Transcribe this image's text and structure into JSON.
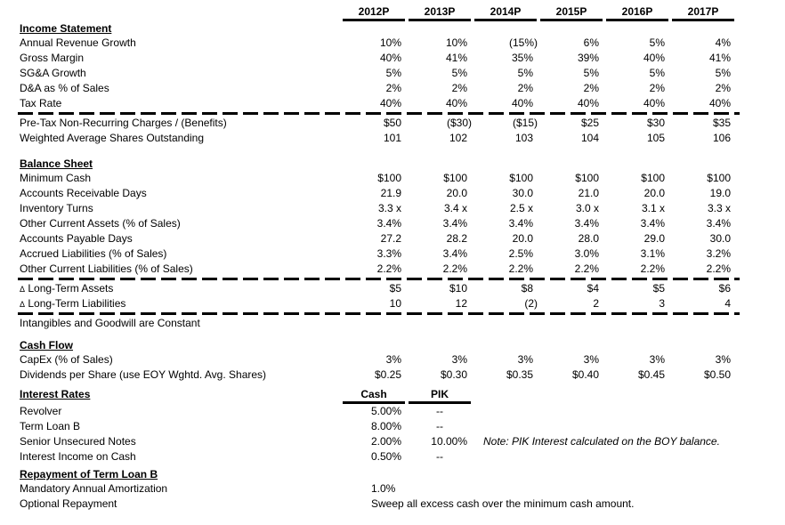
{
  "columns": [
    "2012P",
    "2013P",
    "2014P",
    "2015P",
    "2016P",
    "2017P"
  ],
  "income_statement": {
    "title": "Income Statement",
    "rows": [
      {
        "label": "Annual Revenue Growth",
        "values": [
          "10%",
          "10%",
          "(15%)",
          "6%",
          "5%",
          "4%"
        ]
      },
      {
        "label": "Gross Margin",
        "values": [
          "40%",
          "41%",
          "35%",
          "39%",
          "40%",
          "41%"
        ]
      },
      {
        "label": "SG&A Growth",
        "values": [
          "5%",
          "5%",
          "5%",
          "5%",
          "5%",
          "5%"
        ]
      },
      {
        "label": "D&A as % of Sales",
        "values": [
          "2%",
          "2%",
          "2%",
          "2%",
          "2%",
          "2%"
        ]
      },
      {
        "label": "Tax Rate",
        "values": [
          "40%",
          "40%",
          "40%",
          "40%",
          "40%",
          "40%"
        ]
      }
    ]
  },
  "non_recurring": {
    "rows": [
      {
        "label": "Pre-Tax Non-Recurring Charges / (Benefits)",
        "values": [
          "$50",
          "($30)",
          "($15)",
          "$25",
          "$30",
          "$35"
        ]
      },
      {
        "label": "Weighted Average Shares Outstanding",
        "values": [
          "101",
          "102",
          "103",
          "104",
          "105",
          "106"
        ]
      }
    ]
  },
  "balance_sheet": {
    "title": "Balance Sheet",
    "rows": [
      {
        "label": "Minimum Cash",
        "values": [
          "$100",
          "$100",
          "$100",
          "$100",
          "$100",
          "$100"
        ]
      },
      {
        "label": "Accounts Receivable Days",
        "values": [
          "21.9",
          "20.0",
          "30.0",
          "21.0",
          "20.0",
          "19.0"
        ]
      },
      {
        "label": "Inventory Turns",
        "values": [
          "3.3 x",
          "3.4 x",
          "2.5 x",
          "3.0 x",
          "3.1 x",
          "3.3 x"
        ]
      },
      {
        "label": "Other Current Assets (% of Sales)",
        "values": [
          "3.4%",
          "3.4%",
          "3.4%",
          "3.4%",
          "3.4%",
          "3.4%"
        ]
      },
      {
        "label": "Accounts Payable Days",
        "values": [
          "27.2",
          "28.2",
          "20.0",
          "28.0",
          "29.0",
          "30.0"
        ]
      },
      {
        "label": "Accrued Liabilities (% of Sales)",
        "values": [
          "3.3%",
          "3.4%",
          "2.5%",
          "3.0%",
          "3.1%",
          "3.2%"
        ]
      },
      {
        "label": "Other Current Liabilities (% of Sales)",
        "values": [
          "2.2%",
          "2.2%",
          "2.2%",
          "2.2%",
          "2.2%",
          "2.2%"
        ]
      }
    ]
  },
  "long_term": {
    "rows": [
      {
        "label": "Δ Long-Term Assets",
        "values": [
          "$5",
          "$10",
          "$8",
          "$4",
          "$5",
          "$6"
        ]
      },
      {
        "label": "Δ Long-Term Liabilities",
        "values": [
          "10",
          "12",
          "(2)",
          "2",
          "3",
          "4"
        ]
      }
    ]
  },
  "notes": {
    "intangibles": "Intangibles and Goodwill are Constant"
  },
  "cash_flow": {
    "title": "Cash Flow",
    "rows": [
      {
        "label": "CapEx (% of Sales)",
        "values": [
          "3%",
          "3%",
          "3%",
          "3%",
          "3%",
          "3%"
        ]
      },
      {
        "label": "Dividends per Share (use EOY Wghtd. Avg. Shares)",
        "values": [
          "$0.25",
          "$0.30",
          "$0.35",
          "$0.40",
          "$0.45",
          "$0.50"
        ]
      }
    ]
  },
  "interest_rates": {
    "title": "Interest Rates",
    "columns": [
      "Cash",
      "PIK"
    ],
    "rows": [
      {
        "label": "Revolver",
        "values": [
          "5.00%",
          "--"
        ]
      },
      {
        "label": "Term Loan B",
        "values": [
          "8.00%",
          "--"
        ]
      },
      {
        "label": "Senior Unsecured Notes",
        "values": [
          "2.00%",
          "10.00%"
        ],
        "note": "Note: PIK Interest calculated on the BOY balance."
      },
      {
        "label": "Interest Income on Cash",
        "values": [
          "0.50%",
          "--"
        ]
      }
    ]
  },
  "repayment": {
    "title": "Repayment of Term Loan B",
    "rows": [
      {
        "label": "Mandatory Annual Amortization",
        "text": "1.0%"
      },
      {
        "label": "Optional Repayment",
        "text": "Sweep all excess cash over the minimum cash amount."
      }
    ]
  }
}
